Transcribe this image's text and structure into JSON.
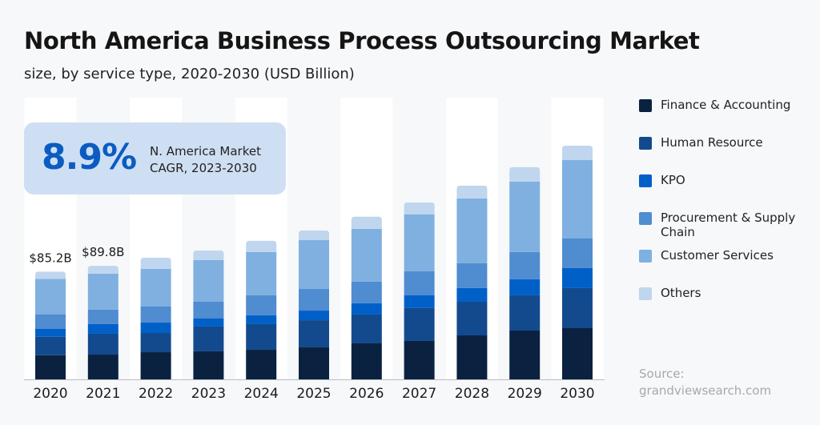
{
  "header": {
    "title": "North America Business Process Outsourcing Market",
    "subtitle": "size, by service type, 2020-2030 (USD Billion)"
  },
  "callout": {
    "value": "8.9%",
    "label_line1": "N. America Market",
    "label_line2": "CAGR, 2023-2030"
  },
  "source": {
    "line1": "Source:",
    "line2": "grandviewsearch.com"
  },
  "chart_data": {
    "type": "bar",
    "stacked": true,
    "title": "North America Business Process Outsourcing Market",
    "subtitle": "size, by service type, 2020-2030 (USD Billion)",
    "xlabel": "",
    "ylabel": "",
    "ylim": [
      0,
      190
    ],
    "grid": false,
    "legend": "right",
    "categories": [
      "2020",
      "2021",
      "2022",
      "2023",
      "2024",
      "2025",
      "2026",
      "2027",
      "2028",
      "2029",
      "2030"
    ],
    "series": [
      {
        "name": "Finance & Accounting",
        "color": "#0a2240",
        "values": [
          19.1,
          19.6,
          21.5,
          22.2,
          23.4,
          25.3,
          28.5,
          30.4,
          34.8,
          38.6,
          40.5
        ]
      },
      {
        "name": "Human Resource",
        "color": "#134a8e",
        "values": [
          14.6,
          16.5,
          15.2,
          19.6,
          20.3,
          21.5,
          22.8,
          26.0,
          26.6,
          27.9,
          31.7
        ]
      },
      {
        "name": "KPO",
        "color": "#0060c8",
        "values": [
          6.4,
          7.6,
          8.2,
          6.3,
          7.0,
          7.6,
          8.9,
          10.1,
          10.8,
          12.7,
          15.8
        ]
      },
      {
        "name": "Procurement & Supply Chain",
        "color": "#4f8cd0",
        "values": [
          11.4,
          11.4,
          12.7,
          13.3,
          15.8,
          17.1,
          17.1,
          19.0,
          19.6,
          21.5,
          23.4
        ]
      },
      {
        "name": "Customer Services",
        "color": "#7fb0e0",
        "values": [
          28.0,
          28.5,
          29.8,
          32.9,
          34.2,
          38.6,
          41.8,
          44.9,
          51.3,
          55.7,
          62.0
        ]
      },
      {
        "name": "Others",
        "color": "#bfd6ee",
        "values": [
          5.7,
          6.2,
          8.8,
          7.6,
          8.9,
          7.6,
          9.5,
          9.5,
          10.1,
          11.4,
          11.4
        ]
      }
    ],
    "data_labels": [
      {
        "category": "2020",
        "text": "$85.2B"
      },
      {
        "category": "2021",
        "text": "$89.8B"
      }
    ]
  }
}
